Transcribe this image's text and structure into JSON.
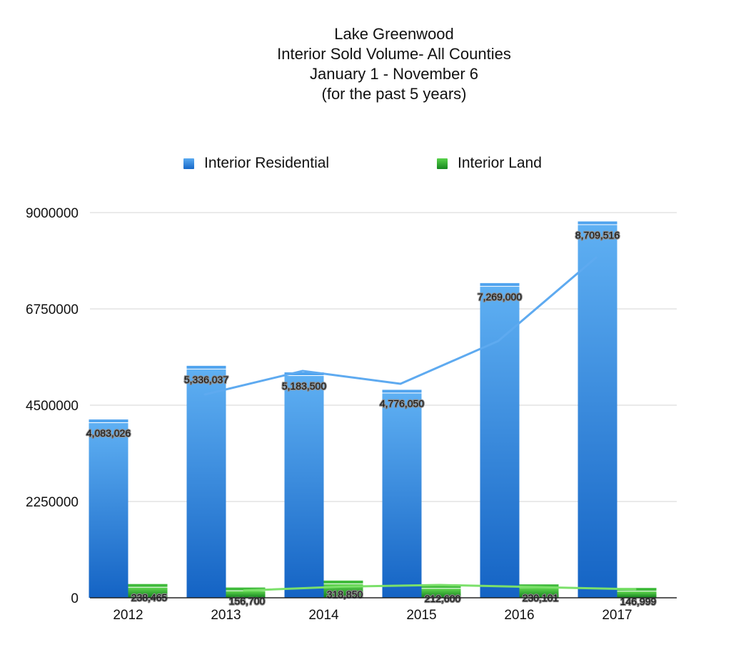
{
  "chart_data": {
    "type": "bar",
    "title": [
      "Lake Greenwood",
      "Interior Sold Volume- All Counties",
      "January 1 - November 6",
      "(for the past 5 years)"
    ],
    "categories": [
      "2012",
      "2013",
      "2014",
      "2015",
      "2016",
      "2017"
    ],
    "series": [
      {
        "name": "Interior Residential",
        "values": [
          4083026,
          5336037,
          5183500,
          4776050,
          7269000,
          8709516
        ],
        "labels": [
          "4,083,026",
          "5,336,037",
          "5,183,500",
          "4,776,050",
          "7,269,000",
          "8,709,516"
        ],
        "color": "#3d8fe3",
        "trendline": [
          4750000,
          5300000,
          5000000,
          6000000,
          7950000
        ]
      },
      {
        "name": "Interior Land",
        "values": [
          238465,
          156700,
          318850,
          212600,
          230101,
          146999
        ],
        "labels": [
          "238,465",
          "156,700",
          "318,850",
          "212,600",
          "230,101",
          "146,999"
        ],
        "color": "#2ea832",
        "trendline": [
          170000,
          260000,
          300000,
          250000,
          200000
        ]
      }
    ],
    "ylim": [
      0,
      9000000
    ],
    "yticks": [
      "0",
      "2250000",
      "4500000",
      "6750000",
      "9000000"
    ],
    "grid": true,
    "legend": "top"
  }
}
